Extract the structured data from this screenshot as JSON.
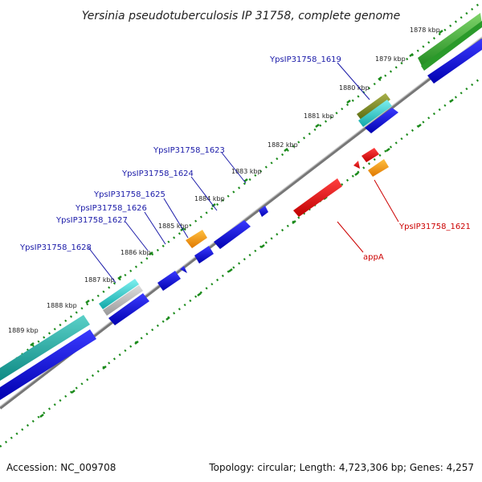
{
  "title": "Yersinia pseudotuberculosis IP 31758, complete genome",
  "footer": {
    "accession": "Accession: NC_009708",
    "summary": "Topology: circular; Length: 4,723,306 bp; Genes: 4,257"
  },
  "colors": {
    "forward_label": "#1a1aa8",
    "reverse_label": "#cc0000",
    "tick": "#1a8a1a",
    "backbone": "#777777"
  },
  "ticks": [
    "1878 kbp",
    "1879 kbp",
    "1880 kbp",
    "1881 kbp",
    "1882 kbp",
    "1883 kbp",
    "1884 kbp",
    "1885 kbp",
    "1886 kbp",
    "1887 kbp",
    "1888 kbp",
    "1889 kbp"
  ],
  "gene_labels": [
    {
      "text": "YpsIP31758_1619",
      "strand": "forward"
    },
    {
      "text": "YpsIP31758_1623",
      "strand": "forward"
    },
    {
      "text": "YpsIP31758_1624",
      "strand": "forward"
    },
    {
      "text": "YpsIP31758_1625",
      "strand": "forward"
    },
    {
      "text": "YpsIP31758_1626",
      "strand": "forward"
    },
    {
      "text": "YpsIP31758_1627",
      "strand": "forward"
    },
    {
      "text": "YpsIP31758_1628",
      "strand": "forward"
    },
    {
      "text": "YpsIP31758_1621",
      "strand": "reverse"
    },
    {
      "text": "appA",
      "strand": "reverse"
    }
  ]
}
